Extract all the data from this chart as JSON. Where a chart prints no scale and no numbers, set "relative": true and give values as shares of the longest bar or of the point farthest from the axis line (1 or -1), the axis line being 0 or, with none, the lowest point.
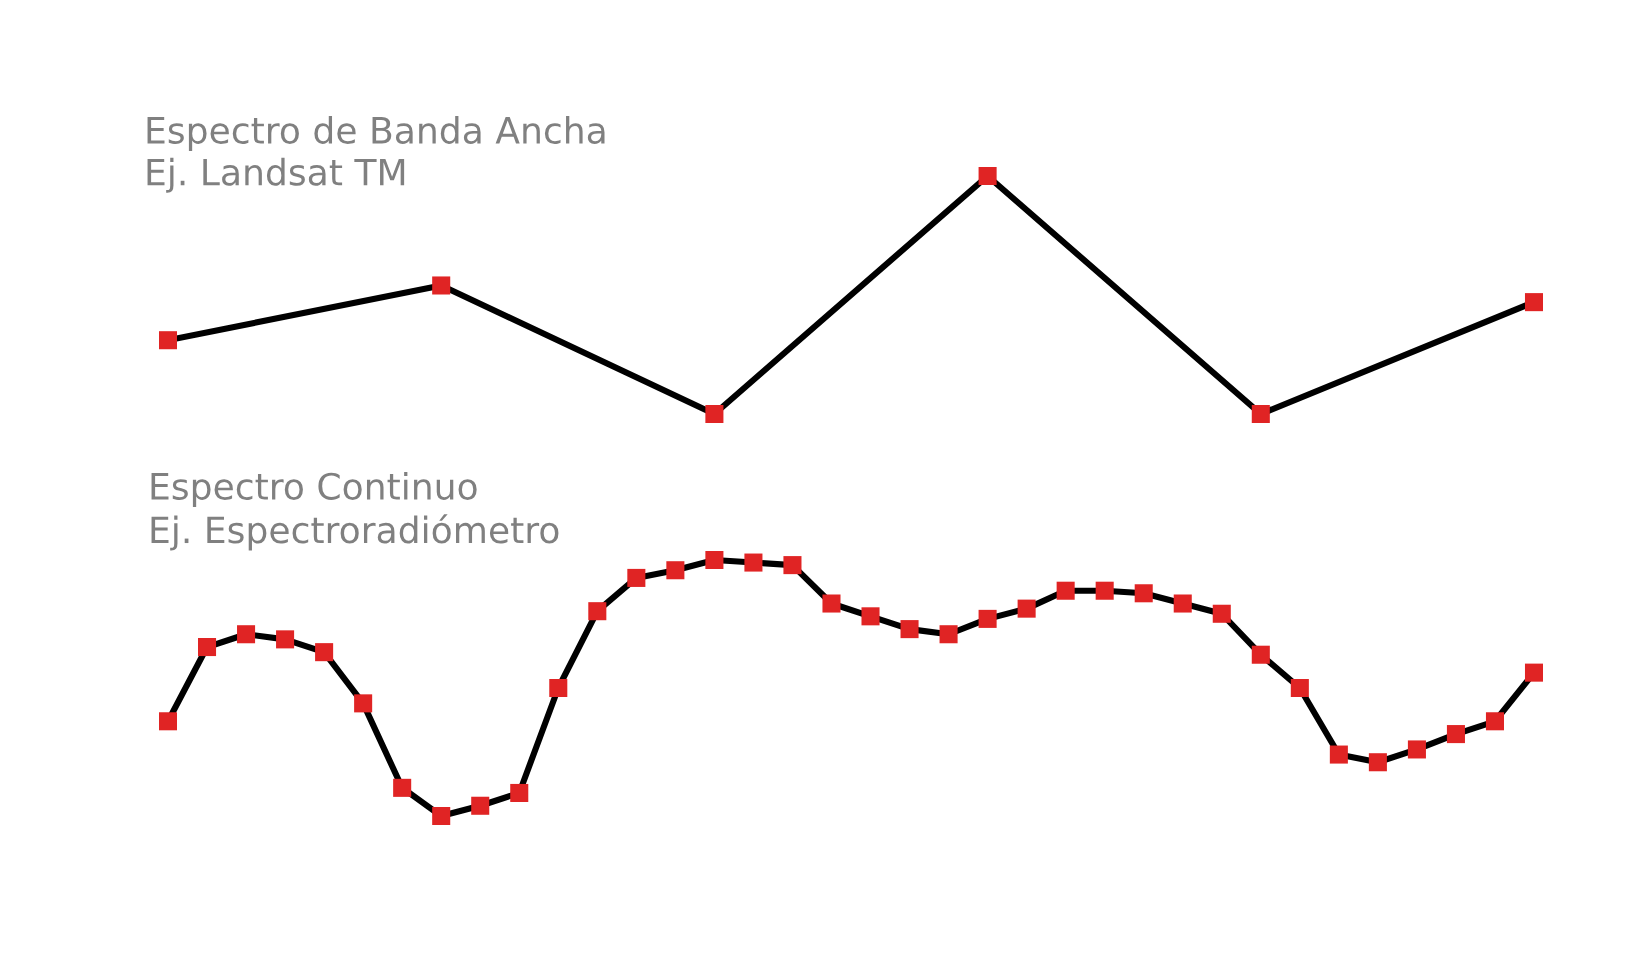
{
  "chart_data": [
    {
      "type": "line",
      "relative": true,
      "marker": "square",
      "line_style": "solid",
      "title": "Espectro de Banda Ancha\nEj. Landsat TM",
      "categories": [
        null,
        null,
        null,
        null,
        null,
        null
      ],
      "series": [
        {
          "color": "#000000",
          "colors": [
            "#e02424",
            "#e02424",
            "#e02424",
            "#e02424",
            "#e02424",
            "#e02424"
          ],
          "values": [
            0.31,
            0.54,
            0,
            1,
            0,
            0.47
          ]
        }
      ]
    },
    {
      "type": "line",
      "relative": true,
      "marker": "square",
      "line_style": "solid",
      "title": "Espectro Continuo\nEj. Espectroradiómetro",
      "categories": [
        null,
        null,
        null,
        null,
        null,
        null,
        null,
        null,
        null,
        null,
        null,
        null,
        null,
        null,
        null,
        null,
        null,
        null,
        null,
        null,
        null,
        null,
        null,
        null,
        null,
        null,
        null,
        null,
        null,
        null,
        null,
        null,
        null,
        null,
        null,
        null
      ],
      "series": [
        {
          "color": "#000000",
          "colors": [
            "#e02424",
            "#e02424",
            "#e02424",
            "#e02424",
            "#e02424",
            "#e02424",
            "#e02424",
            "#e02424",
            "#e02424",
            "#e02424",
            "#e02424",
            "#e02424",
            "#e02424",
            "#e02424",
            "#e02424",
            "#e02424",
            "#e02424",
            "#e02424",
            "#e02424",
            "#e02424",
            "#e02424",
            "#e02424",
            "#e02424",
            "#e02424",
            "#e02424",
            "#e02424",
            "#e02424",
            "#e02424",
            "#e02424",
            "#e02424",
            "#e02424",
            "#e02424",
            "#e02424",
            "#e02424",
            "#e02424",
            "#e02424"
          ],
          "values": [
            0.37,
            0.66,
            0.71,
            0.69,
            0.64,
            0.44,
            0.11,
            0,
            0.04,
            0.09,
            0.5,
            0.8,
            0.93,
            0.96,
            1,
            0.99,
            0.98,
            0.83,
            0.78,
            0.73,
            0.71,
            0.77,
            0.81,
            0.88,
            0.88,
            0.87,
            0.83,
            0.79,
            0.63,
            0.5,
            0.24,
            0.21,
            0.26,
            0.32,
            0.37,
            0.56
          ]
        }
      ]
    }
  ]
}
